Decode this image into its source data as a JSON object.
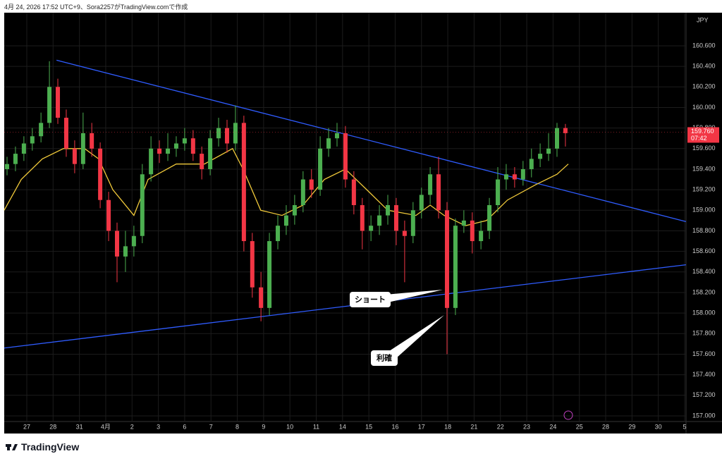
{
  "header": "4月 24, 2026 17:52 UTC+9、Sora2257がTradingView.comで作成",
  "footer": "TradingView",
  "chart_data": {
    "type": "candlestick",
    "currency": "JPY",
    "grid": true,
    "up_color": "#4caf50",
    "down_color": "#f23645",
    "x": [
      -0.75,
      -0.43,
      -0.11,
      0.21,
      0.54,
      0.86,
      1.18,
      1.5,
      1.82,
      2.14,
      2.47,
      2.79,
      3.11,
      3.43,
      3.75,
      4.07,
      4.39,
      4.72,
      5.04,
      5.36,
      5.68,
      6.0,
      6.32,
      6.65,
      6.97,
      7.29,
      7.61,
      7.93,
      8.25,
      8.57,
      8.9,
      9.22,
      9.54,
      9.86,
      10.18,
      10.5,
      10.82,
      11.15,
      11.47,
      11.79,
      12.11,
      12.43,
      12.75,
      13.08,
      13.4,
      13.72,
      14.04,
      14.36,
      14.68,
      15.0,
      15.33,
      15.65,
      15.97,
      16.29,
      16.61,
      16.93,
      17.26,
      17.58,
      17.9,
      18.22,
      18.54,
      18.86,
      19.18,
      19.51,
      19.83,
      20.15,
      20.47
    ],
    "open": [
      159.4,
      159.45,
      159.55,
      159.65,
      159.72,
      159.85,
      160.2,
      159.9,
      159.6,
      159.45,
      159.75,
      159.6,
      159.1,
      158.8,
      158.55,
      158.65,
      158.75,
      159.35,
      159.6,
      159.55,
      159.6,
      159.65,
      159.7,
      159.55,
      159.4,
      159.7,
      159.8,
      159.65,
      159.85,
      158.7,
      158.25,
      158.05,
      158.7,
      158.85,
      158.95,
      159.05,
      159.3,
      159.2,
      159.6,
      159.7,
      159.75,
      159.3,
      159.05,
      158.8,
      158.85,
      158.95,
      159.05,
      158.8,
      158.75,
      159.0,
      159.15,
      159.35,
      159.0,
      158.05,
      158.85,
      158.9,
      158.7,
      158.8,
      159.05,
      159.3,
      159.35,
      159.3,
      159.4,
      159.5,
      159.55,
      159.6,
      159.8
    ],
    "high": [
      159.52,
      159.62,
      159.72,
      159.8,
      159.95,
      160.45,
      160.28,
      159.98,
      159.68,
      159.95,
      159.85,
      159.66,
      159.18,
      158.88,
      158.8,
      158.85,
      159.45,
      159.72,
      159.68,
      159.75,
      159.72,
      159.8,
      159.78,
      159.62,
      159.78,
      159.9,
      159.88,
      160.02,
      159.92,
      158.78,
      158.4,
      158.78,
      158.95,
      159.05,
      159.15,
      159.38,
      159.4,
      159.72,
      159.8,
      159.85,
      159.82,
      159.38,
      159.12,
      158.95,
      159.05,
      159.15,
      159.12,
      158.9,
      159.08,
      159.22,
      159.42,
      159.52,
      159.08,
      158.92,
      159.0,
      158.98,
      158.9,
      159.12,
      159.42,
      159.45,
      159.42,
      159.48,
      159.6,
      159.65,
      159.75,
      159.85,
      159.84
    ],
    "low": [
      159.34,
      159.38,
      159.48,
      159.58,
      159.66,
      159.8,
      159.84,
      159.52,
      159.36,
      159.4,
      159.52,
      159.02,
      158.7,
      158.3,
      158.4,
      158.55,
      158.68,
      159.28,
      159.46,
      159.48,
      159.52,
      159.58,
      159.48,
      159.3,
      159.34,
      159.62,
      159.56,
      159.58,
      158.6,
      158.15,
      157.92,
      157.98,
      158.62,
      158.76,
      158.86,
      158.98,
      159.12,
      159.14,
      159.52,
      159.62,
      159.22,
      158.96,
      158.62,
      158.7,
      158.76,
      158.86,
      158.66,
      158.3,
      158.68,
      158.92,
      159.06,
      158.92,
      157.6,
      157.98,
      158.78,
      158.58,
      158.62,
      158.72,
      158.98,
      159.2,
      159.22,
      159.24,
      159.32,
      159.42,
      159.48,
      159.52,
      159.62
    ],
    "close": [
      159.45,
      159.55,
      159.65,
      159.72,
      159.85,
      160.2,
      159.9,
      159.6,
      159.45,
      159.75,
      159.6,
      159.1,
      158.8,
      158.55,
      158.65,
      158.75,
      159.35,
      159.6,
      159.55,
      159.6,
      159.65,
      159.7,
      159.55,
      159.4,
      159.7,
      159.8,
      159.65,
      159.85,
      158.7,
      158.25,
      158.05,
      158.7,
      158.85,
      158.95,
      159.05,
      159.3,
      159.2,
      159.6,
      159.7,
      159.75,
      159.3,
      159.05,
      158.8,
      158.85,
      158.95,
      159.05,
      158.8,
      158.75,
      159.0,
      159.15,
      159.35,
      159.0,
      158.05,
      158.85,
      158.9,
      158.7,
      158.8,
      159.05,
      159.3,
      159.35,
      159.3,
      159.4,
      159.5,
      159.55,
      159.6,
      159.8,
      159.75
    ],
    "ma": {
      "color": "#f0c93a",
      "x": [
        -0.86,
        -0.21,
        0.59,
        1.39,
        2.2,
        2.73,
        3.27,
        4.07,
        4.61,
        5.68,
        6.75,
        7.82,
        8.22,
        8.89,
        9.7,
        10.5,
        11.31,
        12.11,
        12.92,
        13.72,
        14.79,
        15.33,
        15.86,
        16.67,
        17.47,
        18.27,
        19.35,
        20.15,
        20.58
      ],
      "values": [
        159.0,
        159.3,
        159.5,
        159.6,
        159.6,
        159.5,
        159.2,
        158.95,
        159.3,
        159.45,
        159.45,
        159.6,
        159.4,
        159.0,
        158.95,
        159.05,
        159.3,
        159.4,
        159.2,
        159.0,
        158.95,
        159.05,
        158.95,
        158.85,
        158.9,
        159.1,
        159.25,
        159.35,
        159.45
      ]
    },
    "trendlines": [
      {
        "color": "#2f5cff",
        "x": [
          1.13,
          25.05
        ],
        "values": [
          160.46,
          158.89
        ]
      },
      {
        "color": "#2f5cff",
        "x": [
          -0.86,
          25.05
        ],
        "values": [
          157.66,
          158.47
        ]
      }
    ],
    "last_price": {
      "value": 159.76,
      "label": "159.760",
      "countdown": "07:42"
    },
    "annotations": [
      {
        "text": "ショート"
      },
      {
        "text": "利確"
      }
    ],
    "xlim": [
      -0.857,
      25.054
    ],
    "ylim": [
      156.945,
      160.922
    ],
    "xticks": [
      {
        "value": 0,
        "label": "27"
      },
      {
        "value": 1,
        "label": "28"
      },
      {
        "value": 2,
        "label": "31"
      },
      {
        "value": 3,
        "label": "4月"
      },
      {
        "value": 4,
        "label": "2"
      },
      {
        "value": 5,
        "label": "3"
      },
      {
        "value": 6,
        "label": "6"
      },
      {
        "value": 7,
        "label": "7"
      },
      {
        "value": 8,
        "label": "8"
      },
      {
        "value": 9,
        "label": "9"
      },
      {
        "value": 10,
        "label": "10"
      },
      {
        "value": 11,
        "label": "11"
      },
      {
        "value": 12,
        "label": "14"
      },
      {
        "value": 13,
        "label": "15"
      },
      {
        "value": 14,
        "label": "16"
      },
      {
        "value": 15,
        "label": "17"
      },
      {
        "value": 16,
        "label": "18"
      },
      {
        "value": 17,
        "label": "21"
      },
      {
        "value": 18,
        "label": "22"
      },
      {
        "value": 19,
        "label": "23"
      },
      {
        "value": 20,
        "label": "24"
      },
      {
        "value": 21,
        "label": "25"
      },
      {
        "value": 22,
        "label": "28"
      },
      {
        "value": 23,
        "label": "29"
      },
      {
        "value": 24,
        "label": "30"
      },
      {
        "value": 25,
        "label": "5"
      }
    ],
    "yticks": [
      {
        "value": 157.0,
        "label": "157.000"
      },
      {
        "value": 157.2,
        "label": "157.200"
      },
      {
        "value": 157.4,
        "label": "157.400"
      },
      {
        "value": 157.6,
        "label": "157.600"
      },
      {
        "value": 157.8,
        "label": "157.800"
      },
      {
        "value": 158.0,
        "label": "158.000"
      },
      {
        "value": 158.2,
        "label": "158.200"
      },
      {
        "value": 158.4,
        "label": "158.400"
      },
      {
        "value": 158.6,
        "label": "158.600"
      },
      {
        "value": 158.8,
        "label": "158.800"
      },
      {
        "value": 159.0,
        "label": "159.000"
      },
      {
        "value": 159.2,
        "label": "159.200"
      },
      {
        "value": 159.4,
        "label": "159.400"
      },
      {
        "value": 159.6,
        "label": "159.600"
      },
      {
        "value": 159.8,
        "label": "159.800"
      },
      {
        "value": 160.0,
        "label": "160.000"
      },
      {
        "value": 160.2,
        "label": "160.200"
      },
      {
        "value": 160.4,
        "label": "160.400"
      },
      {
        "value": 160.6,
        "label": "160.600"
      }
    ]
  }
}
